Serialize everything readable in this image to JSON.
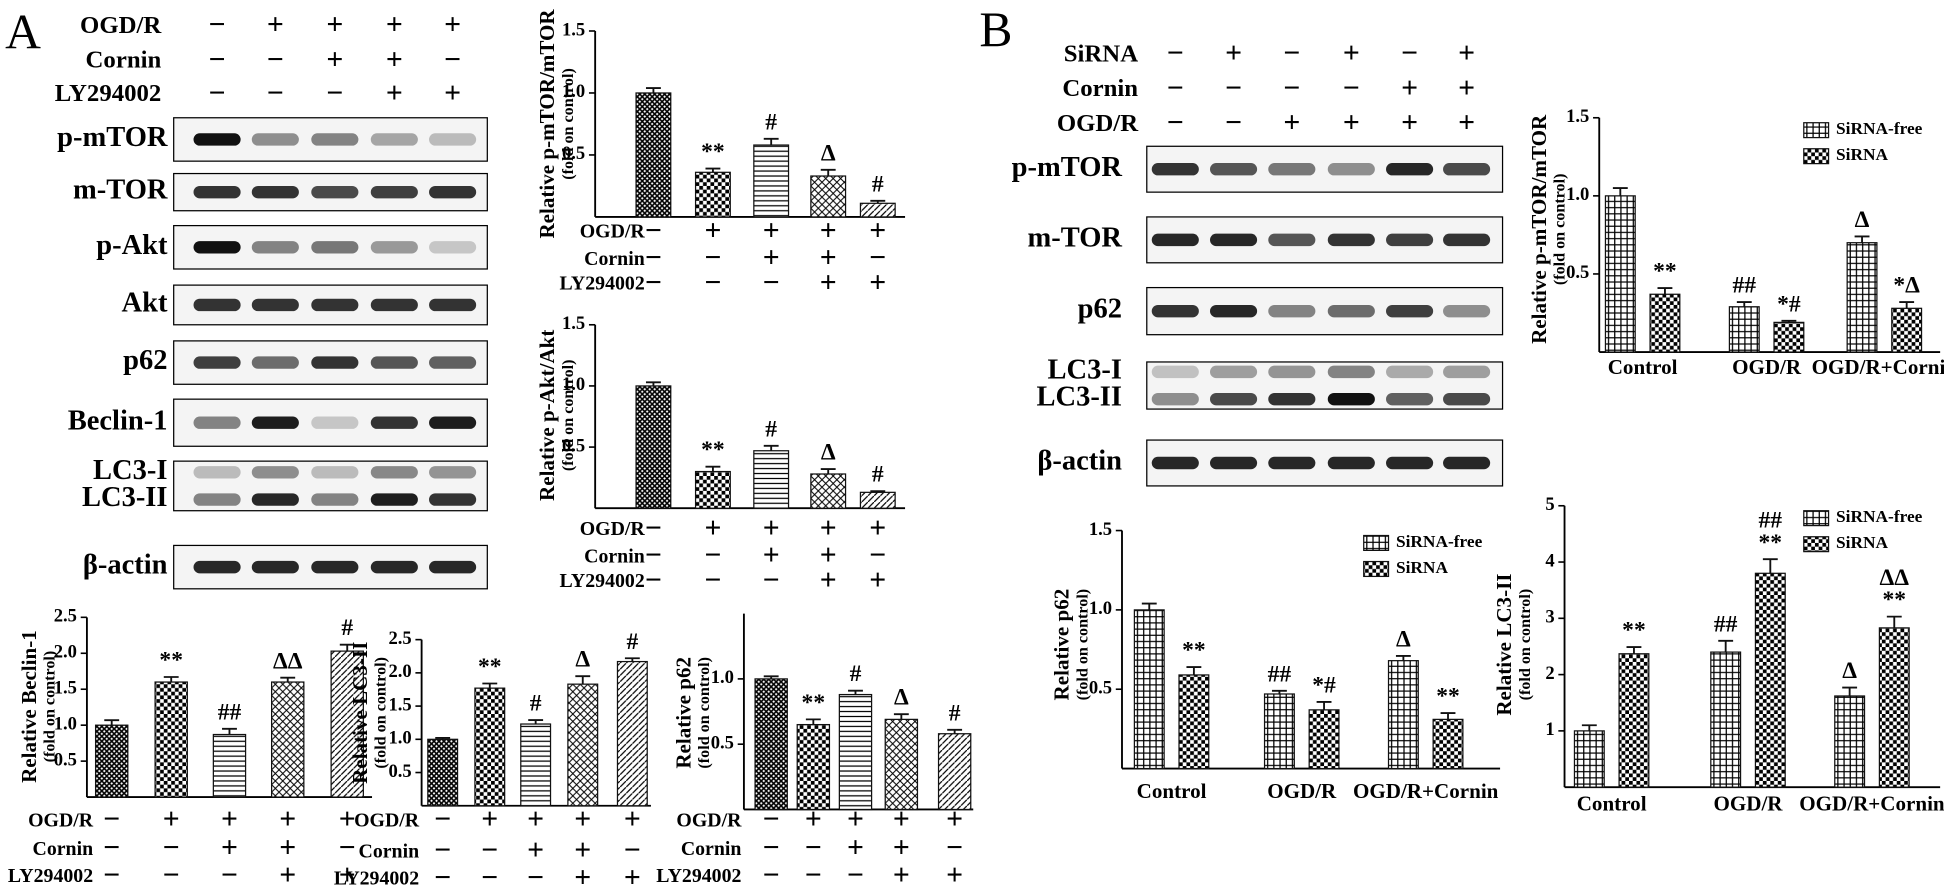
{
  "panel_labels": [
    "A",
    "B"
  ],
  "blots": [
    {
      "conditions": [
        {
          "name": "OGD/R",
          "signs": [
            "−",
            "+",
            "+",
            "+",
            "+"
          ]
        },
        {
          "name": "Cornin",
          "signs": [
            "−",
            "−",
            "+",
            "+",
            "−"
          ]
        },
        {
          "name": "LY294002",
          "signs": [
            "−",
            "−",
            "−",
            "+",
            "+"
          ]
        }
      ],
      "rows": [
        [
          "p-mTOR"
        ],
        [
          "m-TOR"
        ],
        [
          "p-Akt"
        ],
        [
          "Akt"
        ],
        [
          "p62"
        ],
        [
          "Beclin-1"
        ],
        [
          "LC3-I",
          "LC3-II"
        ],
        [
          "β-actin"
        ]
      ]
    },
    {
      "conditions": [
        {
          "name": "SiRNA",
          "signs": [
            "−",
            "+",
            "−",
            "+",
            "−",
            "+"
          ]
        },
        {
          "name": "Cornin",
          "signs": [
            "−",
            "−",
            "−",
            "−",
            "+",
            "+"
          ]
        },
        {
          "name": "OGD/R",
          "signs": [
            "−",
            "−",
            "+",
            "+",
            "+",
            "+"
          ]
        }
      ],
      "rows": [
        [
          "p-mTOR"
        ],
        [
          "m-TOR"
        ],
        [
          "p62"
        ],
        [
          "LC3-I",
          "LC3-II"
        ],
        [
          "β-actin"
        ]
      ]
    }
  ],
  "chart_data": [
    {
      "type": "bar",
      "y_label": "Relative p-mTOR/mTOR",
      "y_sublabel": "(fold on control)",
      "categories": [
        null,
        null,
        null,
        null,
        null
      ],
      "values": [
        1.0,
        0.36,
        0.58,
        0.33,
        0.11
      ],
      "errors": [
        0.04,
        0.03,
        0.05,
        0.05,
        0.02
      ],
      "markers": [
        null,
        "**",
        "#",
        "Δ",
        "#"
      ],
      "color": "#111111",
      "ylim": [
        0,
        1.5
      ],
      "yticks": [
        0.5,
        {
          "value": 1,
          "label": "1.0"
        },
        1.5
      ],
      "conditions": [
        {
          "name": "OGD/R",
          "signs": [
            "−",
            "+",
            "+",
            "+",
            "+"
          ]
        },
        {
          "name": "Cornin",
          "signs": [
            "−",
            "−",
            "+",
            "+",
            "−"
          ]
        },
        {
          "name": "LY294002",
          "signs": [
            "−",
            "−",
            "−",
            "+",
            "+"
          ]
        }
      ]
    },
    {
      "type": "bar",
      "y_label": "Relative p-Akt/Akt",
      "y_sublabel": "(fold on control)",
      "categories": [
        null,
        null,
        null,
        null,
        null
      ],
      "values": [
        1.0,
        0.3,
        0.47,
        0.28,
        0.13
      ],
      "errors": [
        0.03,
        0.04,
        0.04,
        0.04,
        0.01
      ],
      "markers": [
        null,
        "**",
        "#",
        "Δ",
        "#"
      ],
      "color": "#111111",
      "ylim": [
        0,
        1.5
      ],
      "yticks": [
        0.5,
        {
          "value": 1,
          "label": "1.0"
        },
        1.5
      ],
      "conditions": [
        {
          "name": "OGD/R",
          "signs": [
            "−",
            "+",
            "+",
            "+",
            "+"
          ]
        },
        {
          "name": "Cornin",
          "signs": [
            "−",
            "−",
            "+",
            "+",
            "−"
          ]
        },
        {
          "name": "LY294002",
          "signs": [
            "−",
            "−",
            "−",
            "+",
            "+"
          ]
        }
      ]
    },
    {
      "type": "bar",
      "y_label": "Relative Beclin-1",
      "y_sublabel": "(fold on control)",
      "categories": [
        null,
        null,
        null,
        null,
        null
      ],
      "values": [
        1.0,
        1.6,
        0.87,
        1.6,
        2.03
      ],
      "errors": [
        0.07,
        0.07,
        0.08,
        0.06,
        0.09
      ],
      "markers": [
        null,
        "**",
        "##",
        "ΔΔ",
        "#"
      ],
      "color": "#111111",
      "ylim": [
        0,
        2.5
      ],
      "yticks": [
        0.5,
        {
          "value": 1,
          "label": "1.0"
        },
        1.5,
        {
          "value": 2,
          "label": "2.0"
        },
        2.5
      ],
      "conditions": [
        {
          "name": "OGD/R",
          "signs": [
            "−",
            "+",
            "+",
            "+",
            "+"
          ]
        },
        {
          "name": "Cornin",
          "signs": [
            "−",
            "−",
            "+",
            "+",
            "−"
          ]
        },
        {
          "name": "LY294002",
          "signs": [
            "−",
            "−",
            "−",
            "+",
            "+"
          ]
        }
      ]
    },
    {
      "type": "bar",
      "y_label": "Relative LC3-II",
      "y_sublabel": "(fold on control)",
      "categories": [
        null,
        null,
        null,
        null,
        null
      ],
      "values": [
        1.0,
        1.77,
        1.23,
        1.83,
        2.17
      ],
      "errors": [
        0.02,
        0.07,
        0.06,
        0.12,
        0.05
      ],
      "markers": [
        null,
        "**",
        "#",
        "Δ",
        "#"
      ],
      "color": "#111111",
      "ylim": [
        0,
        2.5
      ],
      "yticks": [
        0.5,
        {
          "value": 1,
          "label": "1.0"
        },
        1.5,
        {
          "value": 2,
          "label": "2.0"
        },
        2.5
      ],
      "conditions": [
        {
          "name": "OGD/R",
          "signs": [
            "−",
            "+",
            "+",
            "+",
            "+"
          ]
        },
        {
          "name": "Cornin",
          "signs": [
            "−",
            "−",
            "+",
            "+",
            "−"
          ]
        },
        {
          "name": "LY294002",
          "signs": [
            "−",
            "−",
            "−",
            "+",
            "+"
          ]
        }
      ]
    },
    {
      "type": "bar",
      "y_label": "Relative p62",
      "y_sublabel": "(fold on control)",
      "categories": [
        null,
        null,
        null,
        null,
        null
      ],
      "values": [
        1.0,
        0.65,
        0.88,
        0.69,
        0.58
      ],
      "errors": [
        0.02,
        0.04,
        0.03,
        0.04,
        0.03
      ],
      "markers": [
        null,
        "**",
        "#",
        "Δ",
        "#"
      ],
      "color": "#111111",
      "ylim": [
        0,
        1.5
      ],
      "yticks": [
        0.5,
        {
          "value": 1,
          "label": "1.0"
        }
      ],
      "conditions": [
        {
          "name": "OGD/R",
          "signs": [
            "−",
            "+",
            "+",
            "+",
            "+"
          ]
        },
        {
          "name": "Cornin",
          "signs": [
            "−",
            "−",
            "+",
            "+",
            "−"
          ]
        },
        {
          "name": "LY294002",
          "signs": [
            "−",
            "−",
            "−",
            "+",
            "+"
          ]
        }
      ]
    },
    {
      "type": "grouped_bar",
      "y_label": "Relative p-mTOR/mTOR",
      "y_sublabel": "(fold on control)",
      "categories": [
        "Control",
        "OGD/R",
        "OGD/R+Cornin"
      ],
      "series": [
        {
          "name": "SiRNA-free",
          "color": "#111111",
          "values": [
            1.0,
            0.29,
            0.7
          ],
          "errors": [
            0.05,
            0.03,
            0.04
          ],
          "markers": [
            null,
            "##",
            "Δ"
          ]
        },
        {
          "name": "SiRNA",
          "color": "#111111",
          "values": [
            0.37,
            0.19,
            0.28
          ],
          "errors": [
            0.04,
            0.01,
            0.04
          ],
          "markers": [
            "**",
            "*#",
            "*Δ"
          ]
        }
      ],
      "ylim": [
        0,
        1.5
      ],
      "yticks": [
        0.5,
        {
          "value": 1,
          "label": "1.0"
        },
        1.5
      ],
      "legend": "top-right"
    },
    {
      "type": "grouped_bar",
      "y_label": "Relative p62",
      "y_sublabel": "(fold on control)",
      "categories": [
        "Control",
        "OGD/R",
        "OGD/R+Cornin"
      ],
      "series": [
        {
          "name": "SiRNA-free",
          "color": "#111111",
          "values": [
            1.0,
            0.47,
            0.68
          ],
          "errors": [
            0.04,
            0.02,
            0.03
          ],
          "markers": [
            null,
            "##",
            "Δ"
          ]
        },
        {
          "name": "SiRNA",
          "color": "#111111",
          "values": [
            0.59,
            0.37,
            0.31
          ],
          "errors": [
            0.05,
            0.05,
            0.04
          ],
          "markers": [
            "**",
            "*#",
            "**"
          ]
        }
      ],
      "ylim": [
        0,
        1.5
      ],
      "yticks": [
        0.5,
        {
          "value": 1,
          "label": "1.0"
        },
        1.5
      ],
      "legend": "top-right"
    },
    {
      "type": "grouped_bar",
      "y_label": "Relative LC3-II",
      "y_sublabel": "(fold on control)",
      "categories": [
        "Control",
        "OGD/R",
        "OGD/R+Cornin"
      ],
      "series": [
        {
          "name": "SiRNA-free",
          "color": "#111111",
          "values": [
            1.0,
            2.4,
            1.62
          ],
          "errors": [
            0.1,
            0.2,
            0.15
          ],
          "markers": [
            null,
            "##",
            "Δ"
          ]
        },
        {
          "name": "SiRNA",
          "color": "#111111",
          "values": [
            2.37,
            3.8,
            2.83
          ],
          "errors": [
            0.12,
            0.25,
            0.2
          ],
          "markers": [
            "**",
            [
              "##",
              "**"
            ],
            [
              "ΔΔ",
              "**"
            ]
          ]
        }
      ],
      "ylim": [
        0,
        5
      ],
      "yticks": [
        1,
        2,
        3,
        4,
        5
      ],
      "legend": "top-right"
    }
  ]
}
